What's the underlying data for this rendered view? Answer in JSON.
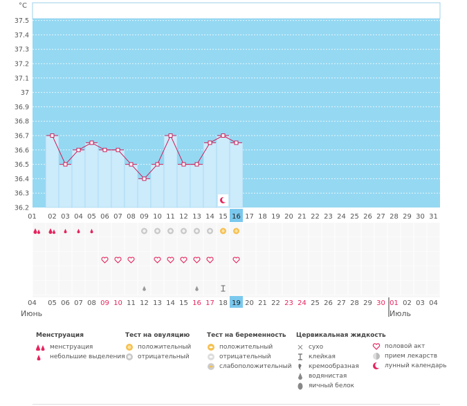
{
  "chart_data": {
    "type": "bar",
    "unit_label": "°C",
    "ylim": [
      36.2,
      37.6
    ],
    "y_ticks": [
      "36.2",
      "36.3",
      "36.4",
      "36.5",
      "36.6",
      "36.7",
      "36.8",
      "36.9",
      "37",
      "37.1",
      "37.2",
      "37.3",
      "37.4",
      "37.5"
    ],
    "cycle_days": [
      "01",
      "02",
      "03",
      "04",
      "05",
      "06",
      "07",
      "08",
      "09",
      "10",
      "11",
      "12",
      "13",
      "14",
      "15",
      "16",
      "17",
      "18",
      "19",
      "20",
      "21",
      "22",
      "23",
      "24",
      "25",
      "26",
      "27",
      "28",
      "29",
      "30",
      "31"
    ],
    "temperatures": [
      null,
      36.7,
      36.5,
      36.6,
      36.65,
      36.6,
      36.6,
      36.5,
      36.4,
      36.5,
      36.7,
      36.5,
      36.5,
      36.65,
      36.7,
      36.65
    ],
    "current_day_index": 15,
    "dates": [
      "04",
      "05",
      "06",
      "07",
      "08",
      "09",
      "10",
      "11",
      "12",
      "13",
      "14",
      "15",
      "16",
      "17",
      "18",
      "19",
      "20",
      "21",
      "22",
      "23",
      "24",
      "25",
      "26",
      "27",
      "28",
      "29",
      "30",
      "01",
      "02",
      "03",
      "04"
    ],
    "weekend_dates": [
      "09",
      "10",
      "16",
      "17",
      "23",
      "24",
      "30",
      "01"
    ],
    "month_labels": [
      "Июнь",
      "Июль"
    ],
    "month_split_index": 27,
    "markers": {
      "menstruation": [
        "heavy",
        "heavy",
        "light",
        "light",
        "light"
      ],
      "ovulation": [
        null,
        null,
        null,
        null,
        null,
        null,
        null,
        null,
        "neg",
        "neg",
        "neg",
        "neg",
        "neg",
        "neg",
        "pos",
        "pos"
      ],
      "sex": [
        null,
        null,
        null,
        null,
        null,
        "heart",
        "heart",
        "heart",
        null,
        "heart",
        "heart",
        "heart",
        "heart",
        "heart",
        null,
        "heart"
      ],
      "cervical": [
        null,
        null,
        null,
        null,
        null,
        null,
        null,
        null,
        "watery",
        null,
        null,
        null,
        "watery",
        null,
        "sticky"
      ],
      "lunar_day_index": 14
    },
    "colors": {
      "sky": "#95d8f2",
      "bar": "#ccebfb",
      "line": "#cc1f5a",
      "pink": "#e5245e",
      "highlight": "#7ac8ed"
    }
  },
  "legend": {
    "menstruation": {
      "title": "Менструация",
      "items": [
        "менструация",
        "небольшие выделения"
      ]
    },
    "ovulation": {
      "title": "Тест на овуляцию",
      "items": [
        "положительный",
        "отрицательный"
      ]
    },
    "pregnancy": {
      "title": "Тест на беременность",
      "items": [
        "положительный",
        "отрицательный",
        "слабоположительный"
      ]
    },
    "cervical": {
      "title": "Цервикальная жидкость",
      "items": [
        "сухо",
        "клейкая",
        "кремообразная",
        "водянистая",
        "яичный белок"
      ]
    },
    "other": {
      "items": [
        "половой акт",
        "прием лекарств",
        "лунный календарь"
      ]
    }
  }
}
